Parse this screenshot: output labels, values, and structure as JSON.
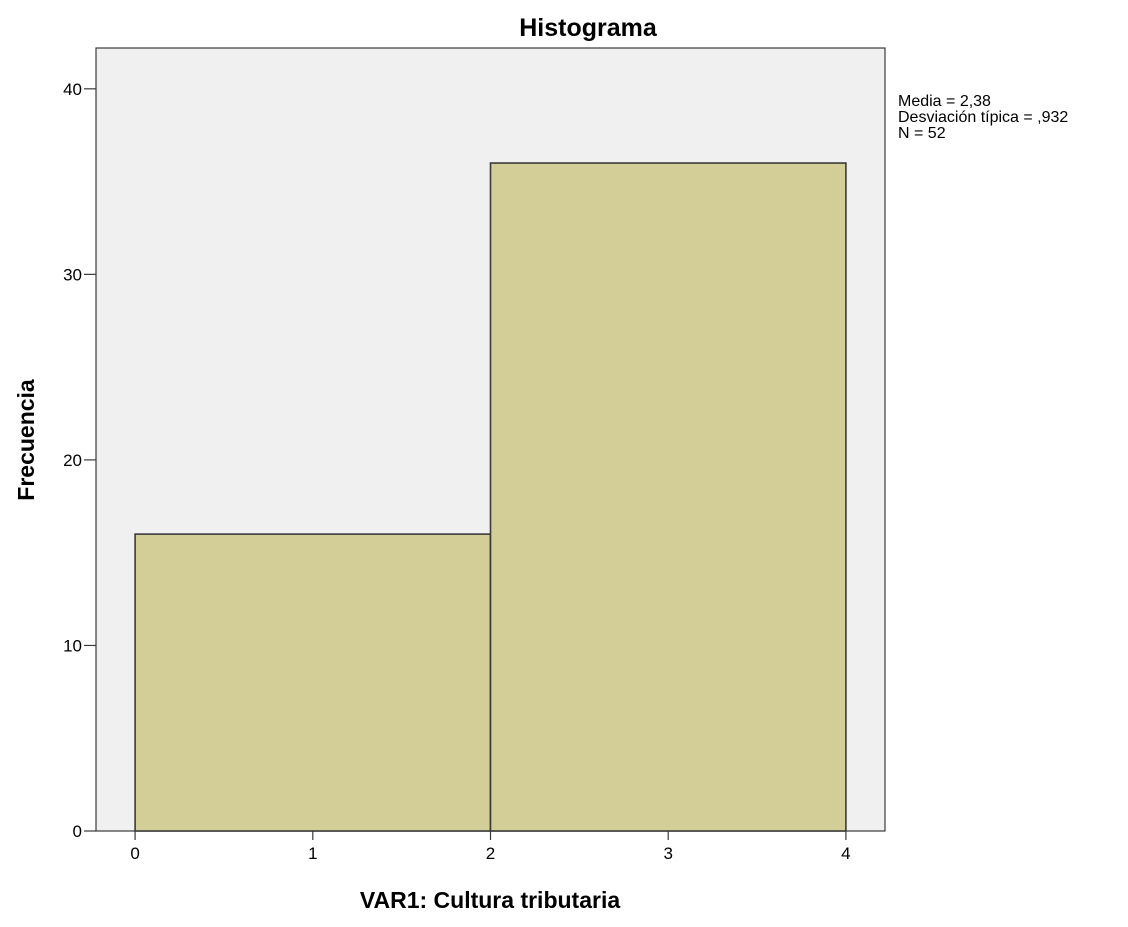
{
  "chart_data": {
    "type": "bar",
    "title": "Histograma",
    "xlabel": "VAR1: Cultura tributaria",
    "ylabel": "Frecuencia",
    "bins": [
      {
        "start": 0,
        "end": 2,
        "value": 16
      },
      {
        "start": 2,
        "end": 4,
        "value": 36
      }
    ],
    "xlim": [
      -0.22,
      4.22
    ],
    "ylim": [
      0,
      42.2
    ],
    "xticks": [
      "0",
      "1",
      "2",
      "3",
      "4"
    ],
    "yticks": [
      "0",
      "10",
      "20",
      "30",
      "40"
    ],
    "grid": false,
    "legend": "none",
    "stats": [
      "Media = 2,38",
      "Desviación típica = ,932",
      "N = 52"
    ],
    "colors": {
      "plot_background": "#f0f0f0",
      "bar_fill": "#d3cd98",
      "bar_stroke": "#3a3a3a",
      "axis": "#3a3a3a"
    }
  }
}
